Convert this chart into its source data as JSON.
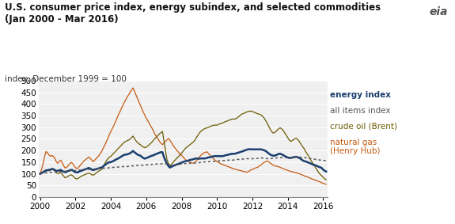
{
  "title_line1": "U.S. consumer price index, energy subindex, and selected commodities",
  "title_line2": "(Jan 2000 - Mar 2016)",
  "ylabel": "index, December 1999 = 100",
  "ylim": [
    0,
    500
  ],
  "yticks": [
    0,
    50,
    100,
    150,
    200,
    250,
    300,
    350,
    400,
    450,
    500
  ],
  "xtick_years": [
    2000,
    2002,
    2004,
    2006,
    2008,
    2010,
    2012,
    2014,
    2016
  ],
  "xlim_start": 1999.92,
  "xlim_end": 2016.7,
  "plot_xlim_end": 2016.25,
  "bg_color": "#f0f0f0",
  "energy_color": "#1a3f6f",
  "all_items_color": "#555555",
  "crude_oil_color": "#6b5a00",
  "nat_gas_color": "#c55a11",
  "title_fontsize": 8.5,
  "ylabel_fontsize": 7.5,
  "tick_fontsize": 7.5,
  "legend_fontsize": 7.5,
  "energy_index": [
    100,
    103,
    107,
    111,
    114,
    115,
    117,
    118,
    121,
    120,
    116,
    113,
    113,
    115,
    117,
    112,
    109,
    107,
    109,
    112,
    115,
    117,
    116,
    110,
    107,
    106,
    108,
    111,
    113,
    116,
    118,
    120,
    123,
    125,
    123,
    118,
    116,
    118,
    120,
    122,
    124,
    126,
    128,
    133,
    138,
    143,
    147,
    150,
    150,
    153,
    156,
    160,
    163,
    166,
    170,
    174,
    178,
    181,
    183,
    183,
    186,
    188,
    193,
    198,
    193,
    188,
    183,
    180,
    178,
    173,
    168,
    165,
    168,
    170,
    173,
    176,
    178,
    180,
    183,
    186,
    188,
    191,
    193,
    193,
    172,
    157,
    144,
    134,
    127,
    130,
    133,
    136,
    138,
    141,
    143,
    146,
    148,
    151,
    153,
    155,
    156,
    158,
    160,
    161,
    163,
    165,
    166,
    165,
    165,
    166,
    166,
    166,
    166,
    168,
    170,
    171,
    173,
    174,
    176,
    176,
    176,
    176,
    176,
    176,
    176,
    178,
    180,
    181,
    183,
    184,
    186,
    186,
    186,
    188,
    190,
    192,
    194,
    196,
    198,
    201,
    203,
    205,
    206,
    205,
    205,
    205,
    205,
    205,
    205,
    205,
    205,
    203,
    201,
    198,
    193,
    188,
    183,
    180,
    178,
    178,
    180,
    183,
    186,
    186,
    183,
    180,
    176,
    173,
    170,
    168,
    168,
    170,
    171,
    173,
    173,
    170,
    168,
    163,
    158,
    155,
    153,
    151,
    148,
    146,
    143,
    140,
    138,
    136,
    133,
    130,
    128,
    125,
    118,
    113,
    110,
    108,
    106,
    104,
    102,
    100
  ],
  "all_items_index": [
    100,
    101,
    102,
    103,
    104,
    104,
    105,
    106,
    107,
    107,
    107,
    107,
    108,
    109,
    110,
    110,
    111,
    111,
    112,
    112,
    113,
    113,
    113,
    113,
    114,
    115,
    116,
    116,
    117,
    117,
    118,
    118,
    119,
    119,
    119,
    119,
    120,
    121,
    122,
    122,
    123,
    123,
    124,
    124,
    125,
    125,
    125,
    126,
    126,
    127,
    128,
    128,
    129,
    129,
    130,
    130,
    131,
    131,
    131,
    131,
    132,
    133,
    134,
    134,
    135,
    135,
    136,
    136,
    137,
    137,
    137,
    137,
    138,
    139,
    140,
    140,
    141,
    141,
    142,
    142,
    143,
    143,
    143,
    143,
    144,
    143,
    142,
    140,
    138,
    137,
    138,
    139,
    140,
    141,
    141,
    141,
    142,
    143,
    144,
    144,
    145,
    145,
    146,
    146,
    147,
    147,
    147,
    148,
    148,
    149,
    150,
    150,
    151,
    151,
    152,
    152,
    153,
    153,
    153,
    153,
    154,
    155,
    156,
    156,
    157,
    157,
    158,
    158,
    159,
    159,
    159,
    159,
    160,
    161,
    162,
    162,
    163,
    163,
    164,
    164,
    165,
    165,
    165,
    165,
    165,
    165,
    166,
    166,
    167,
    167,
    168,
    168,
    167,
    166,
    165,
    165,
    165,
    166,
    167,
    167,
    168,
    168,
    169,
    169,
    170,
    170,
    170,
    170,
    170,
    170,
    171,
    171,
    172,
    172,
    173,
    173,
    172,
    171,
    170,
    170,
    169,
    168,
    167,
    166,
    165,
    164,
    163,
    162,
    161,
    160,
    159,
    159,
    158,
    157,
    157,
    157,
    157,
    157,
    157,
    158
  ],
  "crude_oil": [
    100,
    104,
    107,
    113,
    118,
    116,
    113,
    116,
    120,
    118,
    113,
    106,
    101,
    103,
    106,
    98,
    90,
    83,
    85,
    90,
    93,
    96,
    93,
    86,
    80,
    78,
    81,
    86,
    90,
    93,
    96,
    98,
    101,
    103,
    101,
    96,
    94,
    98,
    103,
    108,
    113,
    116,
    120,
    133,
    145,
    157,
    165,
    172,
    175,
    182,
    189,
    195,
    202,
    209,
    215,
    222,
    229,
    235,
    239,
    242,
    245,
    249,
    255,
    262,
    252,
    242,
    235,
    229,
    225,
    219,
    215,
    212,
    215,
    219,
    225,
    231,
    237,
    245,
    252,
    259,
    265,
    272,
    277,
    282,
    242,
    202,
    162,
    145,
    135,
    139,
    147,
    155,
    162,
    169,
    175,
    182,
    189,
    197,
    205,
    212,
    217,
    222,
    227,
    232,
    237,
    245,
    255,
    265,
    275,
    282,
    287,
    292,
    295,
    297,
    299,
    302,
    305,
    307,
    309,
    309,
    309,
    312,
    315,
    317,
    319,
    322,
    325,
    327,
    330,
    332,
    335,
    335,
    335,
    337,
    342,
    347,
    352,
    357,
    359,
    362,
    365,
    367,
    369,
    369,
    367,
    365,
    362,
    359,
    357,
    355,
    352,
    347,
    339,
    329,
    317,
    305,
    292,
    282,
    275,
    277,
    282,
    289,
    295,
    297,
    292,
    285,
    275,
    265,
    255,
    245,
    239,
    243,
    247,
    252,
    252,
    245,
    237,
    227,
    217,
    209,
    197,
    187,
    177,
    165,
    155,
    145,
    135,
    125,
    115,
    105,
    97,
    92,
    85,
    79,
    75,
    72,
    70,
    69,
    69,
    70
  ],
  "nat_gas": [
    100,
    118,
    142,
    172,
    196,
    191,
    181,
    175,
    179,
    175,
    167,
    152,
    145,
    152,
    159,
    147,
    135,
    125,
    127,
    135,
    142,
    149,
    145,
    135,
    127,
    122,
    127,
    135,
    142,
    149,
    157,
    162,
    167,
    172,
    167,
    159,
    152,
    159,
    165,
    172,
    179,
    189,
    199,
    212,
    225,
    239,
    252,
    269,
    282,
    295,
    307,
    322,
    337,
    352,
    365,
    379,
    392,
    405,
    417,
    429,
    439,
    449,
    459,
    469,
    455,
    439,
    425,
    409,
    395,
    379,
    365,
    352,
    339,
    329,
    317,
    305,
    295,
    282,
    269,
    259,
    249,
    239,
    232,
    225,
    232,
    239,
    245,
    252,
    245,
    235,
    225,
    215,
    207,
    199,
    192,
    185,
    179,
    172,
    165,
    159,
    155,
    152,
    149,
    147,
    145,
    149,
    155,
    165,
    172,
    179,
    185,
    189,
    192,
    195,
    189,
    182,
    175,
    169,
    162,
    157,
    152,
    149,
    145,
    142,
    140,
    137,
    135,
    132,
    130,
    127,
    125,
    122,
    120,
    119,
    117,
    115,
    114,
    112,
    110,
    109,
    107,
    109,
    112,
    117,
    119,
    122,
    125,
    127,
    130,
    135,
    139,
    145,
    149,
    152,
    155,
    152,
    147,
    142,
    137,
    135,
    133,
    132,
    130,
    127,
    125,
    122,
    119,
    117,
    115,
    112,
    110,
    109,
    107,
    105,
    104,
    102,
    100,
    97,
    95,
    92,
    89,
    87,
    85,
    82,
    79,
    77,
    75,
    72,
    70,
    67,
    65,
    62,
    59,
    57,
    55,
    53,
    52,
    51,
    50,
    49
  ]
}
